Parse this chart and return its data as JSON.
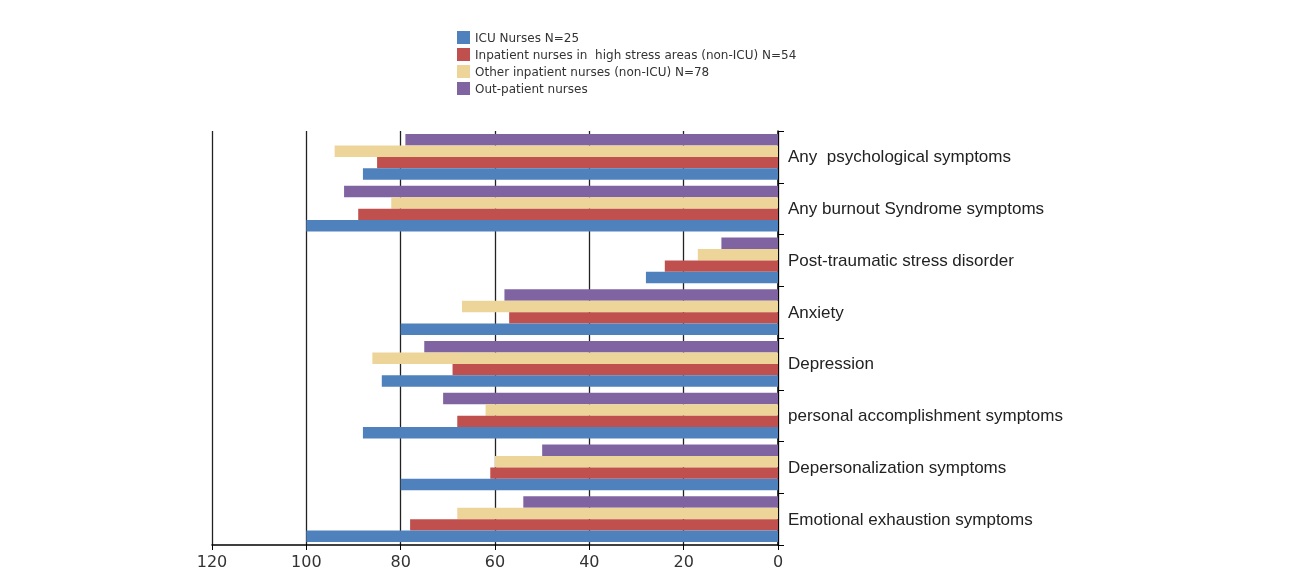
{
  "chart_data": {
    "type": "bar",
    "orientation": "horizontal",
    "categories": [
      "Any  psychological symptoms",
      "Any burnout Syndrome symptoms",
      "Post-traumatic stress disorder",
      "Anxiety",
      "Depression",
      "personal accomplishment symptoms",
      "Depersonalization symptoms",
      "Emotional exhaustion symptoms"
    ],
    "series": [
      {
        "name": "ICU Nurses N=25",
        "color": "#4f81bd",
        "values": [
          88,
          100,
          28,
          80,
          84,
          88,
          80,
          100
        ]
      },
      {
        "name": "Inpatient nurses in  high stress areas (non-ICU) N=54",
        "color": "#c0504d",
        "values": [
          85,
          89,
          24,
          57,
          69,
          68,
          61,
          78
        ]
      },
      {
        "name": "Other inpatient nurses (non-ICU) N=78",
        "color": "#edd59a",
        "values": [
          94,
          82,
          17,
          67,
          86,
          62,
          60,
          68
        ]
      },
      {
        "name": "Out-patient nurses",
        "color": "#8064a2",
        "values": [
          79,
          92,
          12,
          58,
          75,
          71,
          50,
          54
        ]
      }
    ],
    "xlim": [
      120,
      0
    ],
    "xticks": [
      120,
      100,
      80,
      60,
      40,
      20,
      0
    ],
    "grid": "x",
    "legend": "top"
  }
}
